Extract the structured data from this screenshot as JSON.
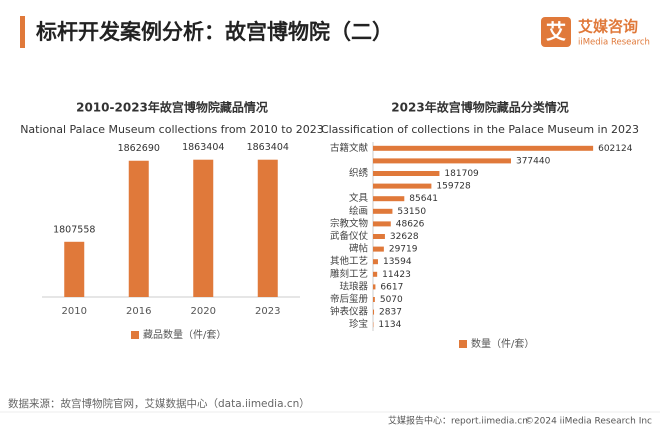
{
  "header": {
    "title": "标杆开发案例分析：故宫博物院（二）"
  },
  "logo": {
    "icon": "艾",
    "name": "艾媒咨询",
    "sub": "iiMedia Research"
  },
  "chart_data": [
    {
      "type": "bar",
      "title": "2010-2023年故宫博物院藏品情况",
      "subtitle": "National Palace Museum collections from 2010  to 2023",
      "categories": [
        "2010",
        "2016",
        "2020",
        "2023"
      ],
      "series": [
        {
          "name": "藏品数量（件/套）",
          "color": "#e0793a",
          "values": [
            1807558,
            1862690,
            1863404,
            1863404
          ]
        }
      ],
      "ylim": [
        1770000,
        1870000
      ]
    },
    {
      "type": "barh",
      "title": "2023年故宫博物院藏品分类情况",
      "subtitle": "Classification of collections in the Palace Museum in 2023",
      "categories": [
        "古籍文献",
        null,
        "织绣",
        null,
        "文具",
        "绘画",
        "宗教文物",
        "武备仪仗",
        "碑帖",
        "其他工艺",
        "雕刻工艺",
        "珐琅器",
        "帝后玺册",
        "钟表仪器",
        "珍宝"
      ],
      "series": [
        {
          "name": "数量（件/套）",
          "color": "#e0793a",
          "values": [
            602124,
            377440,
            181709,
            159728,
            85641,
            53150,
            48626,
            32628,
            29719,
            13594,
            11423,
            6617,
            5070,
            2837,
            1134
          ]
        }
      ],
      "xlim": [
        0,
        610000
      ]
    }
  ],
  "source": "数据来源：故宫博物院官网，艾媒数据中心（data.iimedia.cn）",
  "footer": {
    "left": "艾媒报告中心：report.iimedia.cn",
    "right": "©2024  iiMedia Research  Inc"
  }
}
